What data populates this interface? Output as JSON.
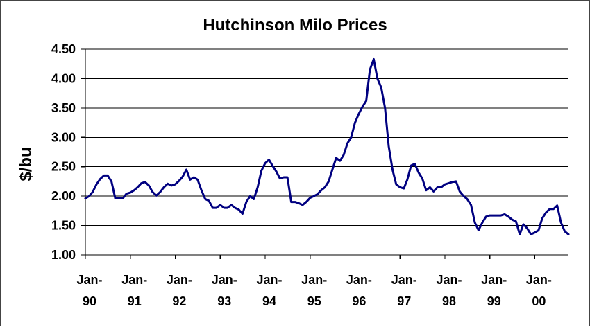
{
  "chart_data": {
    "type": "line",
    "title": "Hutchinson Milo Prices",
    "xlabel": "",
    "ylabel": "$/bu",
    "ylim": [
      1.0,
      4.5
    ],
    "yticks": [
      "1.00",
      "1.50",
      "2.00",
      "2.50",
      "3.00",
      "3.50",
      "4.00",
      "4.50"
    ],
    "xlim": [
      "Jan-90",
      "Sep-00"
    ],
    "xticks": [
      {
        "date": "1990-01",
        "label_top": "Jan-",
        "label_bottom": "90"
      },
      {
        "date": "1991-01",
        "label_top": "Jan-",
        "label_bottom": "91"
      },
      {
        "date": "1992-01",
        "label_top": "Jan-",
        "label_bottom": "92"
      },
      {
        "date": "1993-01",
        "label_top": "Jan-",
        "label_bottom": "93"
      },
      {
        "date": "1994-01",
        "label_top": "Jan-",
        "label_bottom": "94"
      },
      {
        "date": "1995-01",
        "label_top": "Jan-",
        "label_bottom": "95"
      },
      {
        "date": "1996-01",
        "label_top": "Jan-",
        "label_bottom": "96"
      },
      {
        "date": "1997-01",
        "label_top": "Jan-",
        "label_bottom": "97"
      },
      {
        "date": "1998-01",
        "label_top": "Jan-",
        "label_bottom": "98"
      },
      {
        "date": "1999-01",
        "label_top": "Jan-",
        "label_bottom": "99"
      },
      {
        "date": "2000-01",
        "label_top": "Jan-",
        "label_bottom": "00"
      }
    ],
    "grid": "horizontal",
    "legend": "none",
    "series": [
      {
        "color": "#000080",
        "points": [
          [
            "1990-01",
            1.96
          ],
          [
            "1990-02",
            2.0
          ],
          [
            "1990-03",
            2.07
          ],
          [
            "1990-04",
            2.2
          ],
          [
            "1990-05",
            2.29
          ],
          [
            "1990-06",
            2.35
          ],
          [
            "1990-07",
            2.35
          ],
          [
            "1990-08",
            2.25
          ],
          [
            "1990-09",
            1.96
          ],
          [
            "1990-10",
            1.96
          ],
          [
            "1990-11",
            1.96
          ],
          [
            "1990-12",
            2.04
          ],
          [
            "1991-01",
            2.06
          ],
          [
            "1991-02",
            2.1
          ],
          [
            "1991-03",
            2.15
          ],
          [
            "1991-04",
            2.22
          ],
          [
            "1991-05",
            2.24
          ],
          [
            "1991-06",
            2.18
          ],
          [
            "1991-07",
            2.07
          ],
          [
            "1991-08",
            2.01
          ],
          [
            "1991-09",
            2.07
          ],
          [
            "1991-10",
            2.15
          ],
          [
            "1991-11",
            2.21
          ],
          [
            "1991-12",
            2.18
          ],
          [
            "1992-01",
            2.2
          ],
          [
            "1992-02",
            2.26
          ],
          [
            "1992-03",
            2.33
          ],
          [
            "1992-04",
            2.45
          ],
          [
            "1992-05",
            2.28
          ],
          [
            "1992-06",
            2.32
          ],
          [
            "1992-07",
            2.28
          ],
          [
            "1992-08",
            2.1
          ],
          [
            "1992-09",
            1.95
          ],
          [
            "1992-10",
            1.92
          ],
          [
            "1992-11",
            1.8
          ],
          [
            "1992-12",
            1.8
          ],
          [
            "1993-01",
            1.85
          ],
          [
            "1993-02",
            1.8
          ],
          [
            "1993-03",
            1.8
          ],
          [
            "1993-04",
            1.85
          ],
          [
            "1993-05",
            1.8
          ],
          [
            "1993-06",
            1.77
          ],
          [
            "1993-07",
            1.7
          ],
          [
            "1993-08",
            1.9
          ],
          [
            "1993-09",
            2.0
          ],
          [
            "1993-10",
            1.95
          ],
          [
            "1993-11",
            2.15
          ],
          [
            "1993-12",
            2.43
          ],
          [
            "1994-01",
            2.56
          ],
          [
            "1994-02",
            2.62
          ],
          [
            "1994-03",
            2.52
          ],
          [
            "1994-04",
            2.42
          ],
          [
            "1994-05",
            2.3
          ],
          [
            "1994-06",
            2.32
          ],
          [
            "1994-07",
            2.32
          ],
          [
            "1994-08",
            1.9
          ],
          [
            "1994-09",
            1.9
          ],
          [
            "1994-10",
            1.88
          ],
          [
            "1994-11",
            1.85
          ],
          [
            "1994-12",
            1.9
          ],
          [
            "1995-01",
            1.97
          ],
          [
            "1995-02",
            2.0
          ],
          [
            "1995-03",
            2.03
          ],
          [
            "1995-04",
            2.1
          ],
          [
            "1995-05",
            2.15
          ],
          [
            "1995-06",
            2.25
          ],
          [
            "1995-07",
            2.45
          ],
          [
            "1995-08",
            2.65
          ],
          [
            "1995-09",
            2.6
          ],
          [
            "1995-10",
            2.7
          ],
          [
            "1995-11",
            2.9
          ],
          [
            "1995-12",
            3.0
          ],
          [
            "1996-01",
            3.25
          ],
          [
            "1996-02",
            3.4
          ],
          [
            "1996-03",
            3.52
          ],
          [
            "1996-04",
            3.62
          ],
          [
            "1996-05",
            4.15
          ],
          [
            "1996-06",
            4.33
          ],
          [
            "1996-07",
            4.0
          ],
          [
            "1996-08",
            3.85
          ],
          [
            "1996-09",
            3.5
          ],
          [
            "1996-10",
            2.85
          ],
          [
            "1996-11",
            2.45
          ],
          [
            "1996-12",
            2.2
          ],
          [
            "1997-01",
            2.15
          ],
          [
            "1997-02",
            2.13
          ],
          [
            "1997-03",
            2.28
          ],
          [
            "1997-04",
            2.52
          ],
          [
            "1997-05",
            2.55
          ],
          [
            "1997-06",
            2.4
          ],
          [
            "1997-07",
            2.3
          ],
          [
            "1997-08",
            2.1
          ],
          [
            "1997-09",
            2.15
          ],
          [
            "1997-10",
            2.08
          ],
          [
            "1997-11",
            2.15
          ],
          [
            "1997-12",
            2.15
          ],
          [
            "1998-01",
            2.2
          ],
          [
            "1998-02",
            2.22
          ],
          [
            "1998-03",
            2.24
          ],
          [
            "1998-04",
            2.25
          ],
          [
            "1998-05",
            2.08
          ],
          [
            "1998-06",
            2.0
          ],
          [
            "1998-07",
            1.95
          ],
          [
            "1998-08",
            1.85
          ],
          [
            "1998-09",
            1.55
          ],
          [
            "1998-10",
            1.42
          ],
          [
            "1998-11",
            1.55
          ],
          [
            "1998-12",
            1.65
          ],
          [
            "1999-01",
            1.67
          ],
          [
            "1999-02",
            1.67
          ],
          [
            "1999-03",
            1.67
          ],
          [
            "1999-04",
            1.67
          ],
          [
            "1999-05",
            1.69
          ],
          [
            "1999-06",
            1.65
          ],
          [
            "1999-07",
            1.6
          ],
          [
            "1999-08",
            1.57
          ],
          [
            "1999-09",
            1.35
          ],
          [
            "1999-10",
            1.52
          ],
          [
            "1999-11",
            1.45
          ],
          [
            "1999-12",
            1.35
          ],
          [
            "2000-01",
            1.38
          ],
          [
            "2000-02",
            1.42
          ],
          [
            "2000-03",
            1.62
          ],
          [
            "2000-04",
            1.72
          ],
          [
            "2000-05",
            1.78
          ],
          [
            "2000-06",
            1.78
          ],
          [
            "2000-07",
            1.84
          ],
          [
            "2000-08",
            1.55
          ],
          [
            "2000-09",
            1.4
          ],
          [
            "2000-10",
            1.35
          ]
        ]
      }
    ]
  }
}
